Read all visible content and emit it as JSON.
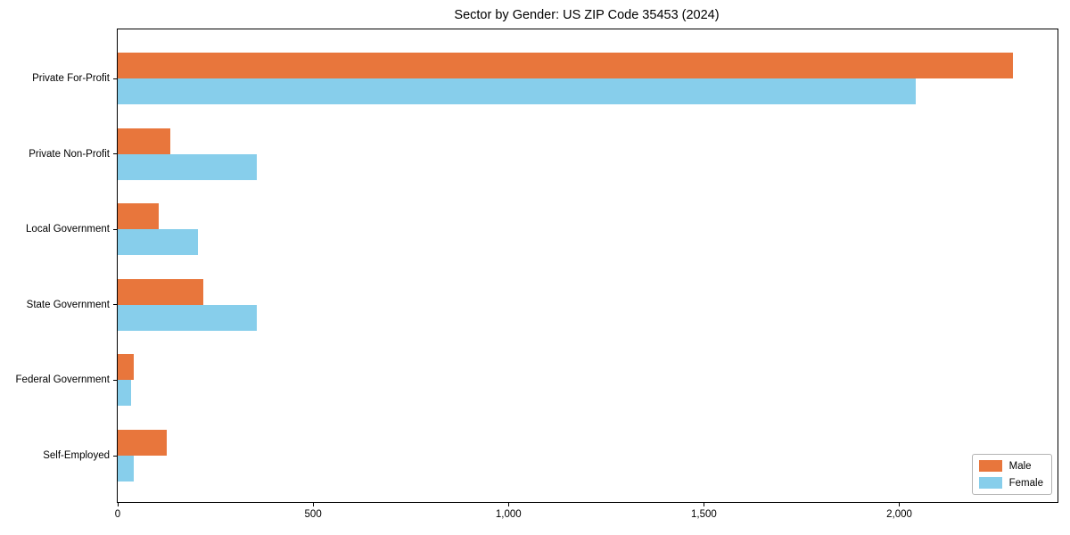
{
  "chart_data": {
    "type": "bar",
    "orientation": "horizontal",
    "title": "Sector by Gender: US ZIP Code 35453 (2024)",
    "categories": [
      "Private For-Profit",
      "Private Non-Profit",
      "Local Government",
      "State Government",
      "Federal Government",
      "Self-Employed"
    ],
    "series": [
      {
        "name": "Male",
        "color": "#e8763c",
        "values": [
          2290,
          135,
          105,
          220,
          40,
          125
        ]
      },
      {
        "name": "Female",
        "color": "#87ceeb",
        "values": [
          2043,
          355,
          205,
          355,
          35,
          40
        ]
      }
    ],
    "xlabel": "",
    "ylabel": "",
    "xlim": [
      0,
      2405
    ],
    "xticks": {
      "values": [
        0,
        500,
        1000,
        1500,
        2000
      ],
      "labels": [
        "0",
        "500",
        "1,000",
        "1,500",
        "2,000"
      ]
    },
    "grid": false,
    "legend": {
      "position": "lower right",
      "entries": [
        "Male",
        "Female"
      ]
    }
  }
}
